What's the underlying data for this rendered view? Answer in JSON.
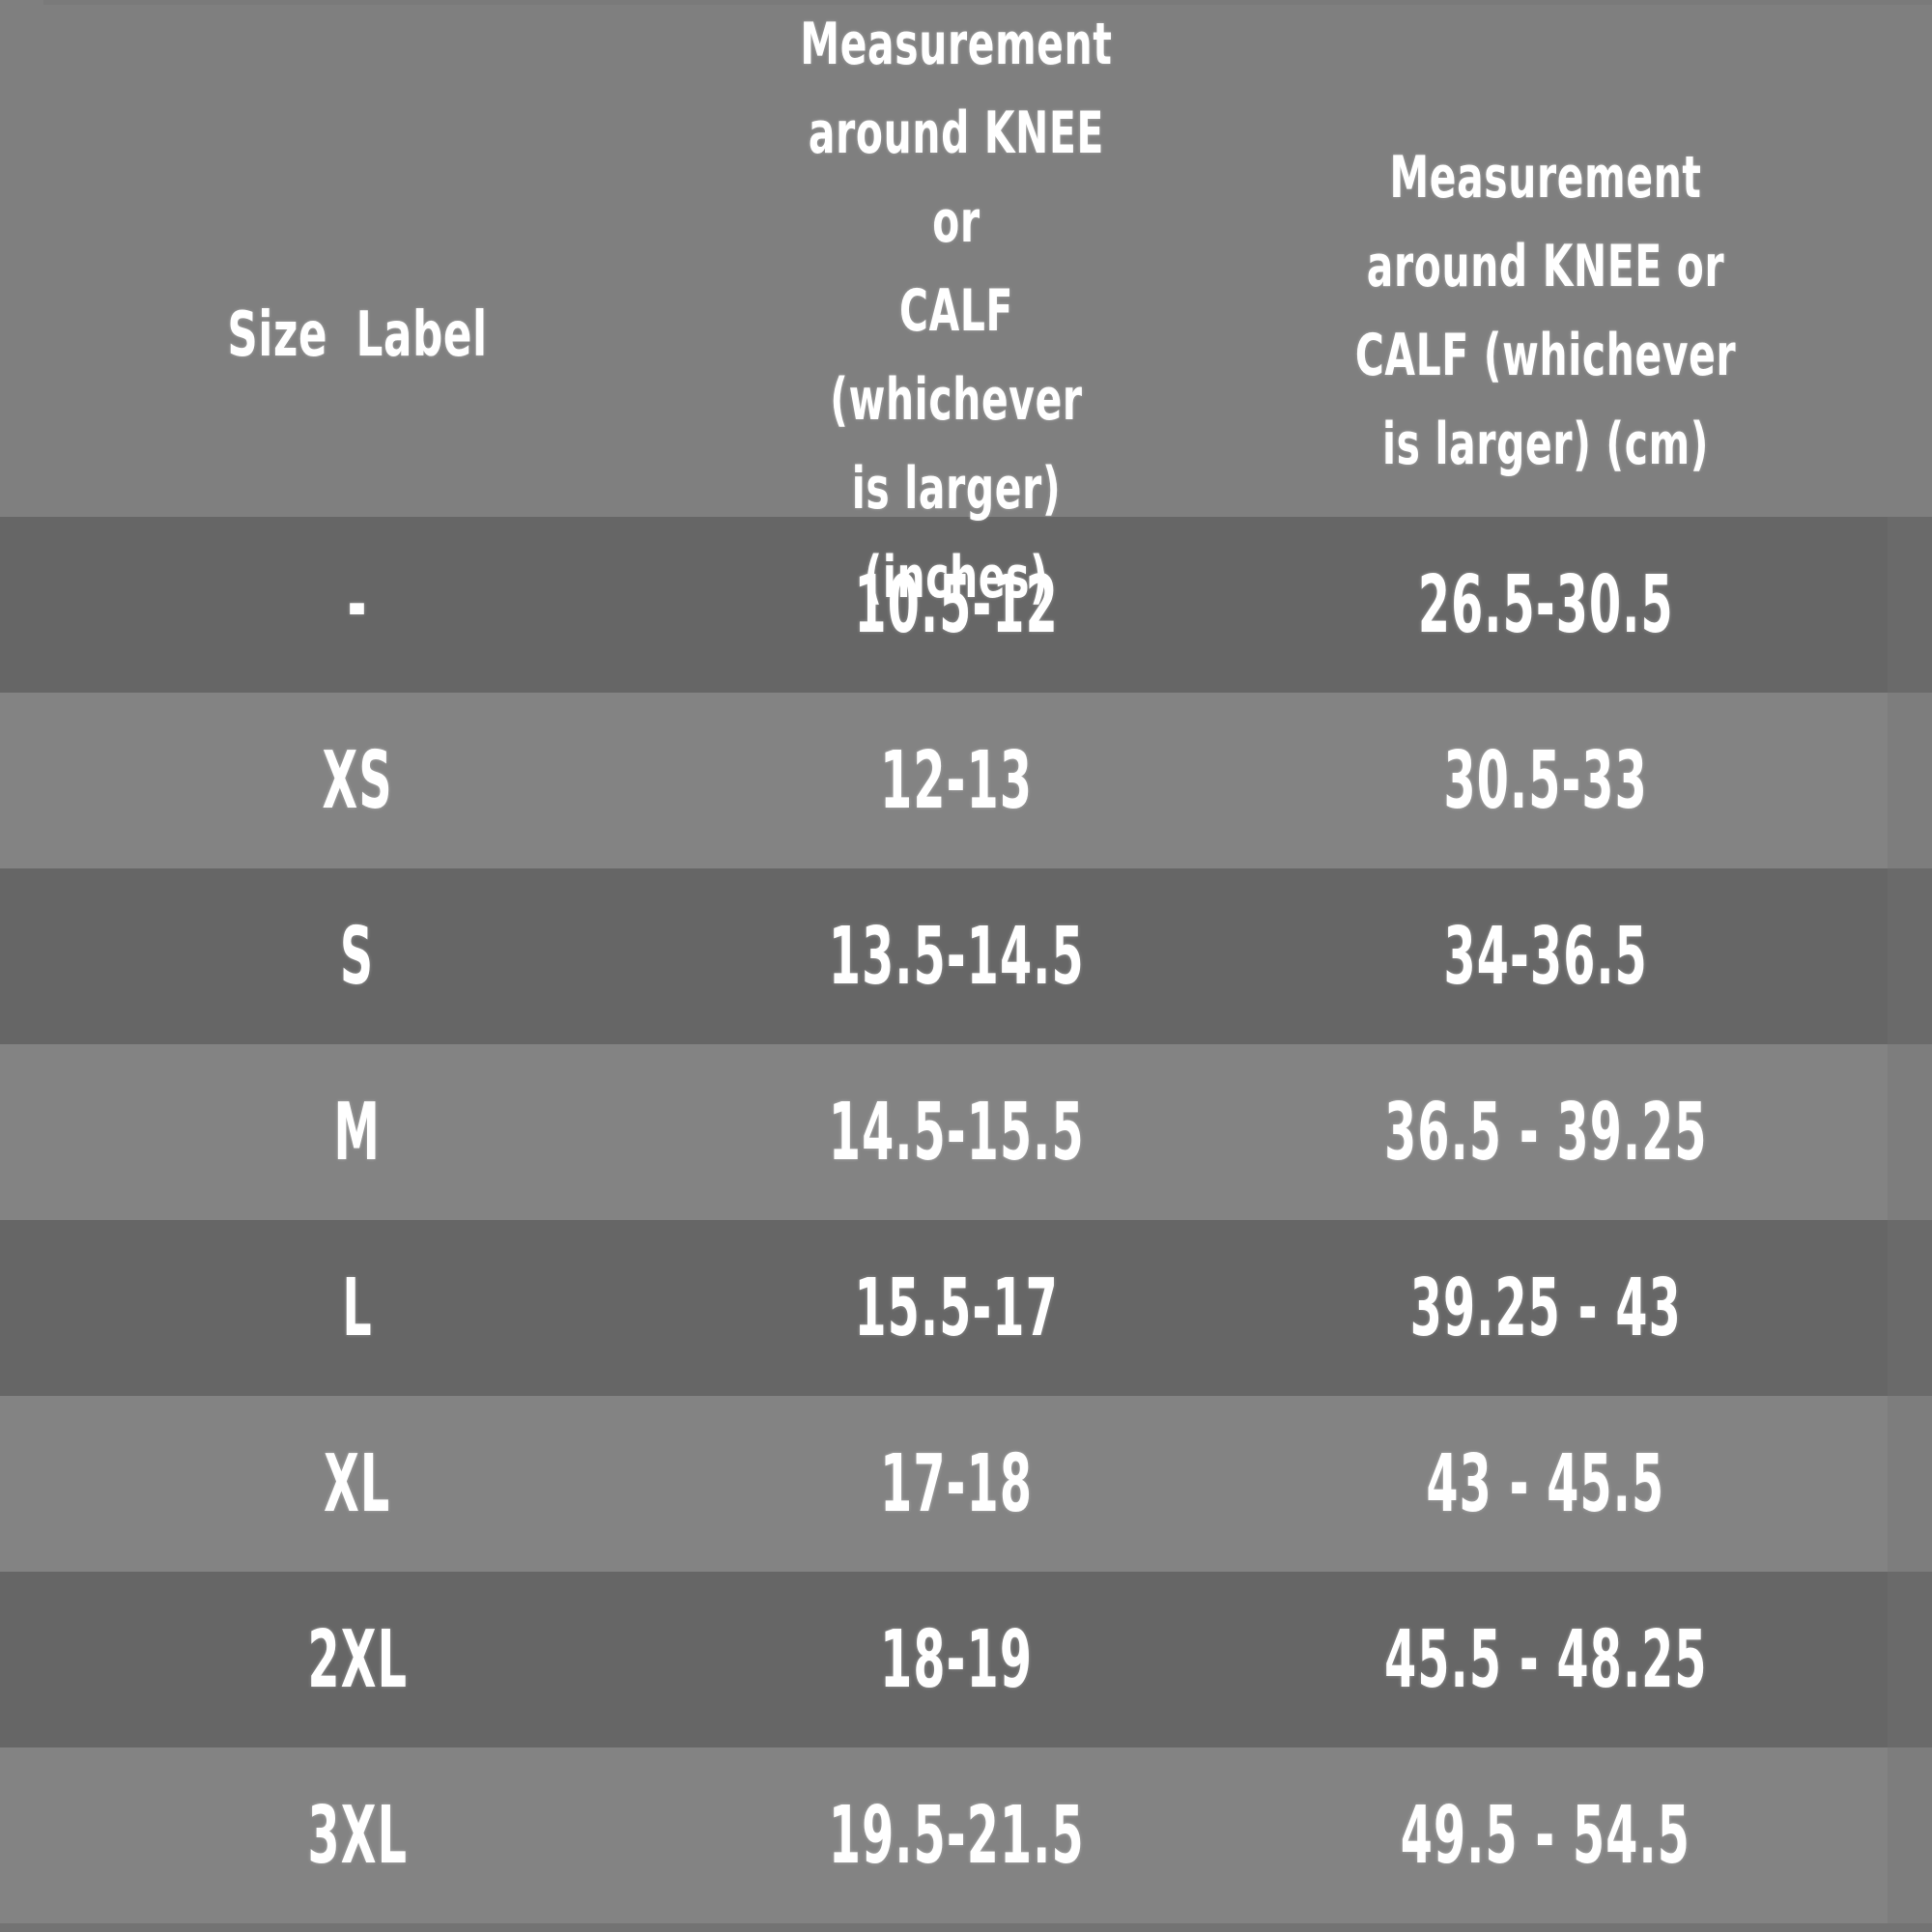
{
  "colors": {
    "header_bg": "#7f7f7f",
    "row_dark_bg": "#666666",
    "row_light_bg": "#838383",
    "text": "#ffffff",
    "top_strip": "#777777",
    "bottom_strip": "#737373",
    "right_strip_overlay": "rgba(116,116,116,0.35)"
  },
  "table": {
    "header": {
      "size_label": "Size Label",
      "inches_label": "Measurement\naround KNEE or\nCALF (whichever\nis larger)\n(inches)",
      "cm_label": "Measurement\naround KNEE or\nCALF (whichever\nis larger) (cm)"
    },
    "rows": [
      {
        "size": "-",
        "inches": "10.5-12",
        "cm": "26.5-30.5"
      },
      {
        "size": "XS",
        "inches": "12-13",
        "cm": "30.5-33"
      },
      {
        "size": "S",
        "inches": "13.5-14.5",
        "cm": "34-36.5"
      },
      {
        "size": "M",
        "inches": "14.5-15.5",
        "cm": "36.5 - 39.25"
      },
      {
        "size": "L",
        "inches": "15.5-17",
        "cm": "39.25 - 43"
      },
      {
        "size": "XL",
        "inches": "17-18",
        "cm": "43 - 45.5"
      },
      {
        "size": "2XL",
        "inches": "18-19",
        "cm": "45.5 - 48.25"
      },
      {
        "size": "3XL",
        "inches": "19.5-21.5",
        "cm": "49.5 - 54.5"
      }
    ]
  },
  "chart_data": {
    "type": "table",
    "columns": [
      "Size Label",
      "Measurement around KNEE or CALF (whichever is larger) (inches)",
      "Measurement around KNEE or CALF (whichever is larger) (cm)"
    ],
    "rows": [
      [
        "-",
        "10.5-12",
        "26.5-30.5"
      ],
      [
        "XS",
        "12-13",
        "30.5-33"
      ],
      [
        "S",
        "13.5-14.5",
        "34-36.5"
      ],
      [
        "M",
        "14.5-15.5",
        "36.5 - 39.25"
      ],
      [
        "L",
        "15.5-17",
        "39.25 - 43"
      ],
      [
        "XL",
        "17-18",
        "43 - 45.5"
      ],
      [
        "2XL",
        "18-19",
        "45.5 - 48.25"
      ],
      [
        "3XL",
        "19.5-21.5",
        "49.5 - 54.5"
      ]
    ]
  }
}
